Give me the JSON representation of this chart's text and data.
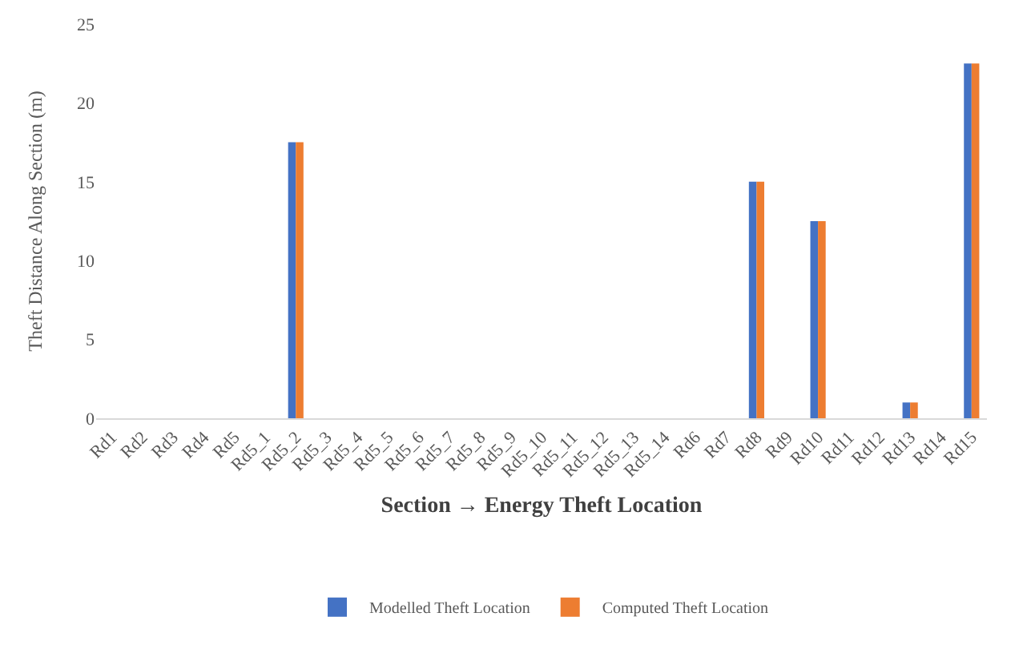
{
  "chart_data": {
    "type": "bar",
    "xlabel": "Section → Energy Theft Location",
    "ylabel": "Theft Distance Along Section (m)",
    "categories": [
      "Rd1",
      "Rd2",
      "Rd3",
      "Rd4",
      "Rd5",
      "Rd5_1",
      "Rd5_2",
      "Rd5_3",
      "Rd5_4",
      "Rd5_5",
      "Rd5_6",
      "Rd5_7",
      "Rd5_8",
      "Rd5_9",
      "Rd5_10",
      "Rd5_11",
      "Rd5_12",
      "Rd5_13",
      "Rd5_14",
      "Rd6",
      "Rd7",
      "Rd8",
      "Rd9",
      "Rd10",
      "Rd11",
      "Rd12",
      "Rd13",
      "Rd14",
      "Rd15"
    ],
    "series": [
      {
        "name": "Modelled Theft Location",
        "color": "#4472c4",
        "values": [
          0,
          0,
          0,
          0,
          0,
          0,
          17.5,
          0,
          0,
          0,
          0,
          0,
          0,
          0,
          0,
          0,
          0,
          0,
          0,
          0,
          0,
          15,
          0,
          12.5,
          0,
          0,
          1,
          0,
          22.5
        ]
      },
      {
        "name": "Computed Theft Location",
        "color": "#ed7d31",
        "values": [
          0,
          0,
          0,
          0,
          0,
          0,
          17.5,
          0,
          0,
          0,
          0,
          0,
          0,
          0,
          0,
          0,
          0,
          0,
          0,
          0,
          0,
          15,
          0,
          12.5,
          0,
          0,
          1,
          0,
          22.5
        ]
      }
    ],
    "ylim": [
      0,
      25
    ],
    "yticks": [
      0,
      5,
      10,
      15,
      20,
      25
    ],
    "grid": false,
    "legend": "bottom"
  }
}
